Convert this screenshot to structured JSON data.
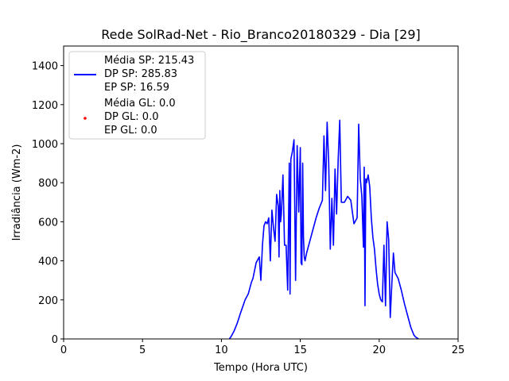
{
  "chart_data": {
    "type": "line",
    "title": "Rede SolRad-Net - Rio_Branco20180329 - Dia [29]",
    "xlabel": "Tempo (Hora UTC)",
    "ylabel": "Irradiância (Wm-2)",
    "xlim": [
      0,
      25
    ],
    "ylim": [
      0,
      1500
    ],
    "xticks": [
      "0",
      "5",
      "10",
      "15",
      "20",
      "25"
    ],
    "yticks": [
      "0",
      "200",
      "400",
      "600",
      "800",
      "1000",
      "1200",
      "1400"
    ],
    "grid": false,
    "legend_position": "top-left",
    "colors": {
      "sp": "#0000ff",
      "gl": "#ff0000"
    },
    "legend": [
      {
        "series": "sp",
        "marker": "line",
        "lines": [
          "Média SP: 215.43",
          "DP SP: 285.83",
          "EP SP: 16.59"
        ]
      },
      {
        "series": "gl",
        "marker": "point",
        "lines": [
          "Média GL: 0.0",
          "DP GL: 0.0",
          "EP GL: 0.0"
        ]
      }
    ],
    "series": [
      {
        "id": "sp",
        "x": [
          10.5,
          10.6,
          10.8,
          11.0,
          11.2,
          11.5,
          11.7,
          11.8,
          11.9,
          12.0,
          12.2,
          12.4,
          12.5,
          12.6,
          12.7,
          12.8,
          12.9,
          13.0,
          13.1,
          13.2,
          13.3,
          13.4,
          13.5,
          13.6,
          13.65,
          13.7,
          13.75,
          13.8,
          13.9,
          14.0,
          14.1,
          14.2,
          14.3,
          14.35,
          14.4,
          14.5,
          14.6,
          14.7,
          14.8,
          14.9,
          15.0,
          15.05,
          15.1,
          15.15,
          15.2,
          15.25,
          15.3,
          15.4,
          15.6,
          15.8,
          16.0,
          16.2,
          16.4,
          16.5,
          16.6,
          16.7,
          16.8,
          16.9,
          17.0,
          17.1,
          17.2,
          17.3,
          17.4,
          17.5,
          17.6,
          17.8,
          18.0,
          18.2,
          18.4,
          18.6,
          18.7,
          18.8,
          18.9,
          19.0,
          19.05,
          19.1,
          19.15,
          19.2,
          19.3,
          19.4,
          19.5,
          19.6,
          19.7,
          19.8,
          19.9,
          20.0,
          20.1,
          20.2,
          20.3,
          20.4,
          20.5,
          20.6,
          20.7,
          20.8,
          20.9,
          21.0,
          21.2,
          21.4,
          21.6,
          21.8,
          22.0,
          22.1,
          22.2,
          22.3,
          22.5
        ],
        "y": [
          0,
          10,
          40,
          80,
          130,
          200,
          230,
          260,
          290,
          310,
          390,
          420,
          300,
          480,
          580,
          600,
          590,
          620,
          400,
          660,
          570,
          500,
          740,
          680,
          420,
          760,
          600,
          640,
          840,
          480,
          480,
          250,
          900,
          230,
          920,
          960,
          1020,
          300,
          990,
          650,
          980,
          390,
          380,
          900,
          520,
          420,
          400,
          440,
          500,
          560,
          620,
          670,
          710,
          1040,
          760,
          1110,
          900,
          460,
          720,
          480,
          870,
          640,
          920,
          1120,
          700,
          700,
          730,
          710,
          590,
          620,
          1100,
          820,
          730,
          470,
          880,
          170,
          820,
          800,
          840,
          780,
          620,
          520,
          460,
          360,
          280,
          230,
          200,
          190,
          480,
          170,
          600,
          510,
          110,
          280,
          440,
          340,
          310,
          250,
          180,
          120,
          60,
          40,
          20,
          10,
          0
        ]
      },
      {
        "id": "gl",
        "x": [],
        "y": []
      }
    ]
  }
}
